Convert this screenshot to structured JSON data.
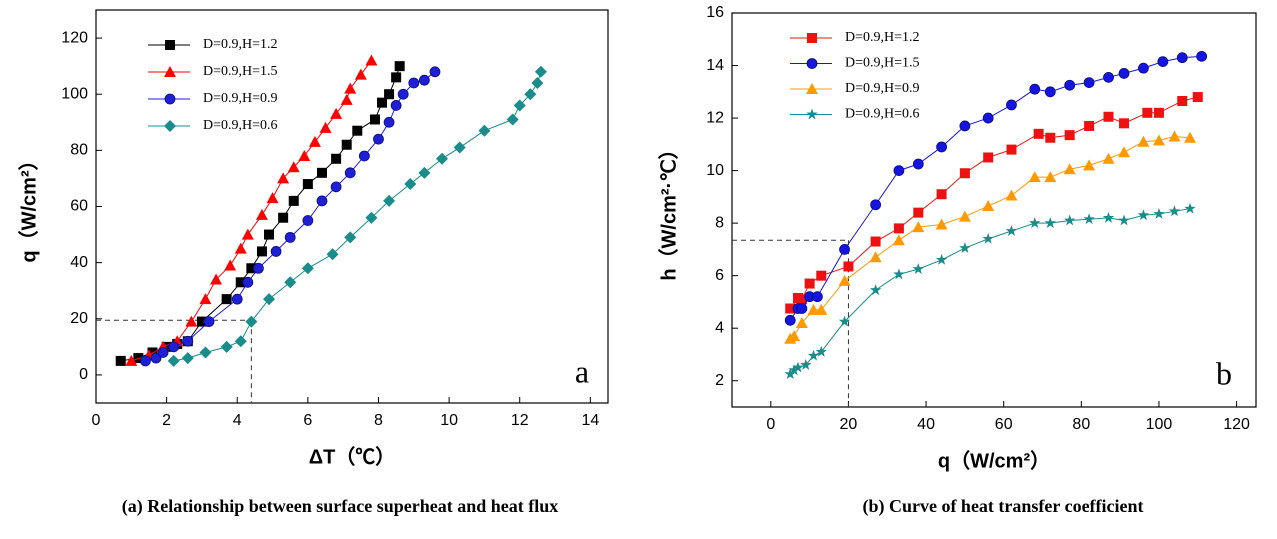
{
  "chart_data": [
    {
      "type": "line",
      "caption": "(a) Relationship between surface superheat and heat flux",
      "x_label": "ΔT（℃）",
      "y_label": "q（W/cm²）",
      "annotation": "a",
      "xlim": [
        0,
        14.5
      ],
      "ylim": [
        -10,
        130
      ],
      "xticks": [
        0,
        2,
        4,
        6,
        8,
        10,
        12,
        14
      ],
      "yticks": [
        0,
        20,
        40,
        60,
        80,
        100,
        120
      ],
      "legend": "upper left",
      "guide": {
        "x": 4.4,
        "y": 19.5
      },
      "series": [
        {
          "name": "D=0.9,H=1.2",
          "color": "#000000",
          "marker": "square",
          "x": [
            0.7,
            1.2,
            1.6,
            2.0,
            2.3,
            2.6,
            3.0,
            3.7,
            4.1,
            4.4,
            4.7,
            4.9,
            5.3,
            5.6,
            6.0,
            6.4,
            6.8,
            7.1,
            7.4,
            7.9,
            8.1,
            8.3,
            8.5,
            8.6
          ],
          "values": [
            5,
            6,
            8,
            10,
            11,
            12,
            19,
            27,
            33,
            38,
            44,
            50,
            56,
            62,
            68,
            72,
            77,
            82,
            87,
            91,
            97,
            100,
            106,
            110
          ]
        },
        {
          "name": "D=0.9,H=1.5",
          "color": "#ff0000",
          "marker": "triangle",
          "x": [
            1.0,
            1.5,
            1.9,
            2.3,
            2.7,
            3.1,
            3.4,
            3.8,
            4.1,
            4.3,
            4.7,
            5.0,
            5.3,
            5.6,
            5.9,
            6.2,
            6.5,
            6.8,
            7.1,
            7.2,
            7.5,
            7.8
          ],
          "values": [
            5,
            7,
            10,
            12,
            19,
            27,
            34,
            39,
            45,
            50,
            57,
            63,
            70,
            74,
            78,
            83,
            88,
            93,
            98,
            102,
            107,
            112
          ]
        },
        {
          "name": "D=0.9,H=0.9",
          "color": "#1f1fd6",
          "marker": "circle",
          "x": [
            1.4,
            1.7,
            1.9,
            2.2,
            2.6,
            3.2,
            4.0,
            4.3,
            4.6,
            5.1,
            5.5,
            6.0,
            6.4,
            6.8,
            7.2,
            7.6,
            8.0,
            8.3,
            8.5,
            8.7,
            9.0,
            9.3,
            9.6
          ],
          "values": [
            5,
            6,
            8,
            10,
            12,
            19,
            27,
            33,
            38,
            44,
            49,
            55,
            62,
            67,
            72,
            78,
            84,
            90,
            96,
            100,
            104,
            105,
            108
          ]
        },
        {
          "name": "D=0.9,H=0.6",
          "color": "#1a8c8c",
          "marker": "diamond",
          "x": [
            2.2,
            2.6,
            3.1,
            3.7,
            4.1,
            4.4,
            4.9,
            5.5,
            6.0,
            6.7,
            7.2,
            7.8,
            8.3,
            8.9,
            9.3,
            9.8,
            10.3,
            11.0,
            11.8,
            12.0,
            12.3,
            12.5,
            12.6
          ],
          "values": [
            5,
            6,
            8,
            10,
            12,
            19,
            27,
            33,
            38,
            43,
            49,
            56,
            62,
            68,
            72,
            77,
            81,
            87,
            91,
            96,
            100,
            104,
            108
          ]
        }
      ]
    },
    {
      "type": "line",
      "caption": "(b) Curve of heat transfer coefficient",
      "x_label": "q（W/cm²）",
      "y_label": "h（W/cm²·℃）",
      "annotation": "b",
      "xlim": [
        -10,
        125
      ],
      "ylim": [
        1,
        16
      ],
      "xticks": [
        0,
        20,
        40,
        60,
        80,
        100,
        120
      ],
      "yticks": [
        2,
        4,
        6,
        8,
        10,
        12,
        14,
        16
      ],
      "legend": "upper left",
      "guide": {
        "x": 20,
        "y": 7.35
      },
      "series": [
        {
          "name": "D=0.9,H=1.2",
          "color": "#ee1111",
          "marker": "square",
          "x": [
            5,
            7,
            8,
            10,
            13,
            20,
            27,
            33,
            38,
            44,
            50,
            56,
            62,
            69,
            72,
            77,
            82,
            87,
            91,
            97,
            100,
            106,
            110
          ],
          "values": [
            4.75,
            5.15,
            5.1,
            5.7,
            6,
            6.35,
            7.3,
            7.8,
            8.4,
            9.1,
            9.9,
            10.5,
            10.8,
            11.4,
            11.25,
            11.35,
            11.7,
            12.05,
            11.8,
            12.2,
            12.2,
            12.65,
            12.8
          ]
        },
        {
          "name": "D=0.9,H=1.5",
          "color": "#1515e0",
          "marker": "circle",
          "x": [
            5,
            7,
            8,
            10,
            12,
            19,
            27,
            33,
            38,
            44,
            50,
            56,
            62,
            68,
            72,
            77,
            82,
            87,
            91,
            96,
            101,
            106,
            111
          ],
          "values": [
            4.3,
            4.75,
            4.75,
            5.2,
            5.2,
            7.0,
            8.7,
            10.0,
            10.25,
            10.9,
            11.7,
            12.0,
            12.5,
            13.1,
            13.0,
            13.25,
            13.35,
            13.55,
            13.7,
            13.9,
            14.15,
            14.3,
            14.35
          ]
        },
        {
          "name": "D=0.9,H=0.9",
          "color": "#ff9900",
          "marker": "triangle",
          "x": [
            5,
            6,
            8,
            11,
            13,
            19,
            27,
            33,
            38,
            44,
            50,
            56,
            62,
            68,
            72,
            77,
            82,
            87,
            91,
            96,
            100,
            104,
            108
          ],
          "values": [
            3.6,
            3.7,
            4.2,
            4.7,
            4.7,
            5.8,
            6.7,
            7.35,
            7.85,
            7.95,
            8.25,
            8.65,
            9.05,
            9.75,
            9.75,
            10.05,
            10.2,
            10.45,
            10.7,
            11.1,
            11.15,
            11.3,
            11.25
          ]
        },
        {
          "name": "D=0.9,H=0.6",
          "color": "#1a8c8c",
          "marker": "star",
          "x": [
            5,
            6,
            7,
            9,
            11,
            13,
            19,
            27,
            33,
            38,
            44,
            50,
            56,
            62,
            68,
            72,
            77,
            82,
            87,
            91,
            96,
            100,
            104,
            108
          ],
          "values": [
            2.25,
            2.4,
            2.5,
            2.6,
            2.95,
            3.1,
            4.25,
            5.45,
            6.05,
            6.25,
            6.6,
            7.05,
            7.4,
            7.7,
            8.0,
            8.0,
            8.1,
            8.15,
            8.2,
            8.1,
            8.3,
            8.35,
            8.45,
            8.55
          ]
        }
      ]
    }
  ]
}
